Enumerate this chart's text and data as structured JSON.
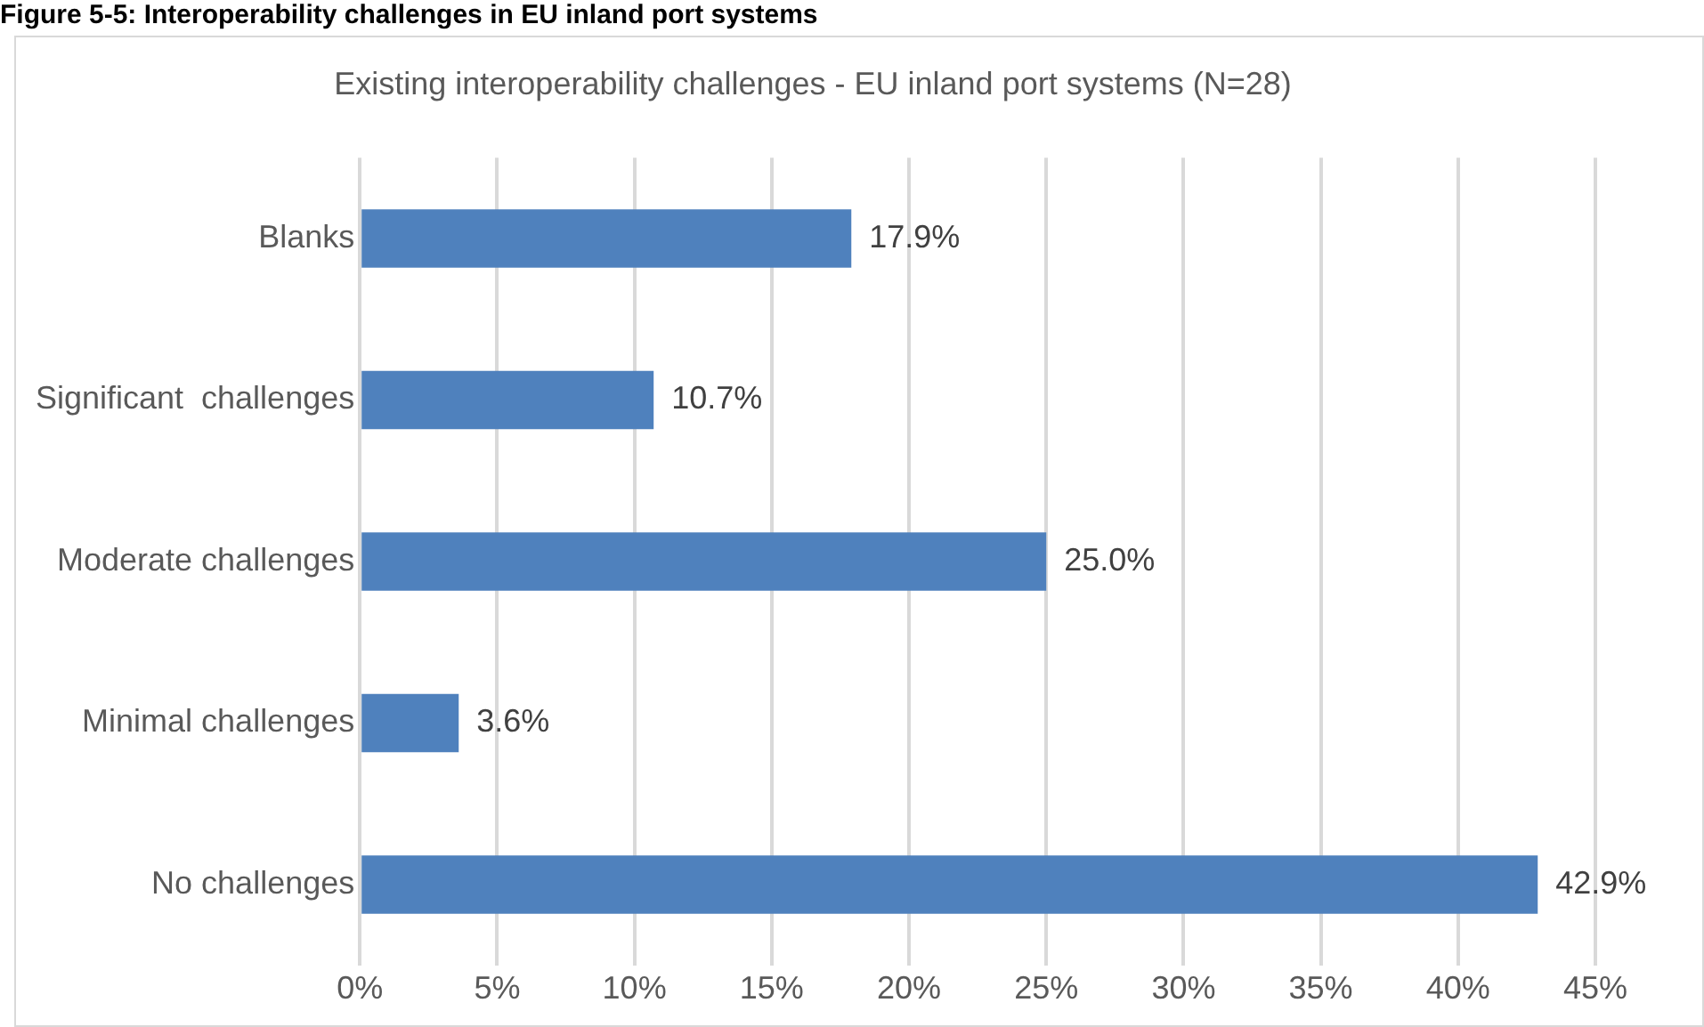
{
  "chart_data": {
    "type": "bar",
    "orientation": "horizontal",
    "title": "Figure 5-5: Interoperability challenges in EU inland port systems",
    "subtitle": "Existing interoperability challenges - EU inland port systems (N=28)",
    "categories": [
      "Blanks",
      "Significant  challenges",
      "Moderate challenges",
      "Minimal challenges",
      "No challenges"
    ],
    "values": [
      17.9,
      10.7,
      25.0,
      3.6,
      42.9
    ],
    "color": "#4f81bd",
    "value_labels": [
      "17.9%",
      "10.7%",
      "25.0%",
      "3.6%",
      "42.9%"
    ],
    "xlim": [
      0,
      45
    ],
    "xticks": [
      {
        "value": 0,
        "label": "0%"
      },
      {
        "value": 5,
        "label": "5%"
      },
      {
        "value": 10,
        "label": "10%"
      },
      {
        "value": 15,
        "label": "15%"
      },
      {
        "value": 20,
        "label": "20%"
      },
      {
        "value": 25,
        "label": "25%"
      },
      {
        "value": 30,
        "label": "30%"
      },
      {
        "value": 35,
        "label": "35%"
      },
      {
        "value": 40,
        "label": "40%"
      },
      {
        "value": 45,
        "label": "45%"
      }
    ],
    "grid": "x"
  }
}
